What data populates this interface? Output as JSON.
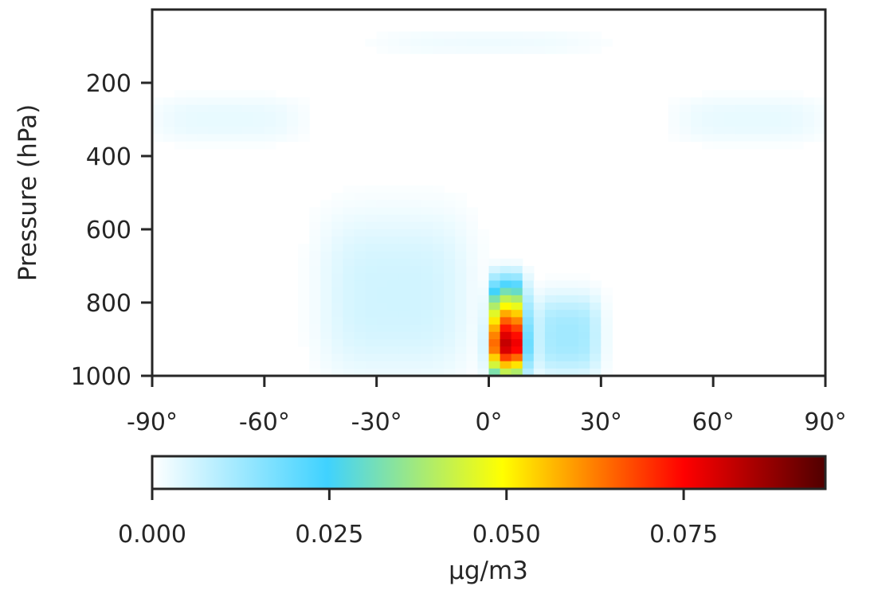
{
  "chart_data": {
    "type": "heatmap",
    "title": "",
    "xlabel": "",
    "ylabel": "Pressure (hPa)",
    "x_ticks": [
      -90,
      -60,
      -30,
      0,
      30,
      60,
      90
    ],
    "x_tick_labels": [
      "-90°",
      "-60°",
      "-30°",
      "0°",
      "30°",
      "60°",
      "90°"
    ],
    "y_ticks": [
      200,
      400,
      600,
      800,
      1000
    ],
    "y_tick_labels": [
      "200",
      "400",
      "600",
      "800",
      "1000"
    ],
    "xlim": [
      -90,
      90
    ],
    "ylim": [
      1000,
      0
    ],
    "grid": false,
    "features": [
      {
        "lat_min": 0,
        "lat_max": 10,
        "p_top": 680,
        "p_bottom": 1000,
        "peak": 0.095
      },
      {
        "lat_min": -45,
        "lat_max": -5,
        "p_top": 560,
        "p_bottom": 1000,
        "peak": 0.006
      },
      {
        "lat_min": 12,
        "lat_max": 30,
        "p_top": 780,
        "p_bottom": 1000,
        "peak": 0.012
      },
      {
        "lat_min": -90,
        "lat_max": -50,
        "p_top": 240,
        "p_bottom": 360,
        "peak": 0.003
      },
      {
        "lat_min": 50,
        "lat_max": 90,
        "p_top": 240,
        "p_bottom": 360,
        "peak": 0.003
      },
      {
        "lat_min": -30,
        "lat_max": 30,
        "p_top": 60,
        "p_bottom": 120,
        "peak": 0.002
      }
    ],
    "colorbar": {
      "label": "µg/m3",
      "min": 0.0,
      "max": 0.095,
      "ticks": [
        0.0,
        0.025,
        0.05,
        0.075
      ],
      "tick_labels": [
        "0.000",
        "0.025",
        "0.050",
        "0.075"
      ],
      "colormap": [
        "#ffffff",
        "#3fd2ff",
        "#ffff00",
        "#ff0000",
        "#500000"
      ]
    }
  }
}
